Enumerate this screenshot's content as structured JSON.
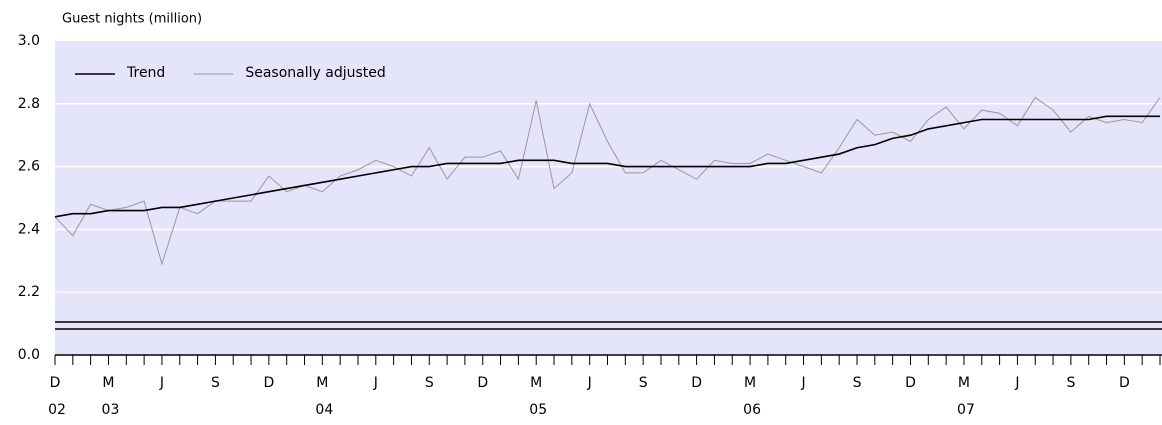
{
  "chart_data": {
    "type": "line",
    "y_label": "Guest nights (million)",
    "categories": [
      "D",
      null,
      null,
      "M",
      null,
      null,
      "J",
      null,
      null,
      "S",
      null,
      null,
      "D",
      null,
      null,
      "M",
      null,
      null,
      "J",
      null,
      null,
      "S",
      null,
      null,
      "D",
      null,
      null,
      "M",
      null,
      null,
      "J",
      null,
      null,
      "S",
      null,
      null,
      "D",
      null,
      null,
      "M",
      null,
      null,
      "J",
      null,
      null,
      "S",
      null,
      null,
      "D",
      null,
      null,
      "M",
      null,
      null,
      "J",
      null,
      null,
      "S",
      null,
      null,
      "D",
      null,
      null
    ],
    "year_labels": [
      "02",
      null,
      null,
      "03",
      null,
      null,
      null,
      null,
      null,
      null,
      null,
      null,
      null,
      null,
      null,
      "04",
      null,
      null,
      null,
      null,
      null,
      null,
      null,
      null,
      null,
      null,
      null,
      "05",
      null,
      null,
      null,
      null,
      null,
      null,
      null,
      null,
      null,
      null,
      null,
      "06",
      null,
      null,
      null,
      null,
      null,
      null,
      null,
      null,
      null,
      null,
      null,
      "07",
      null,
      null,
      null,
      null,
      null,
      null,
      null,
      null,
      null,
      null,
      null
    ],
    "series": [
      {
        "name": "Trend",
        "color": "#000000",
        "width": 1.6,
        "values": [
          2.44,
          2.45,
          2.45,
          2.46,
          2.46,
          2.46,
          2.47,
          2.47,
          2.48,
          2.49,
          2.5,
          2.51,
          2.52,
          2.53,
          2.54,
          2.55,
          2.56,
          2.57,
          2.58,
          2.59,
          2.6,
          2.6,
          2.61,
          2.61,
          2.61,
          2.61,
          2.62,
          2.62,
          2.62,
          2.61,
          2.61,
          2.61,
          2.6,
          2.6,
          2.6,
          2.6,
          2.6,
          2.6,
          2.6,
          2.6,
          2.61,
          2.61,
          2.62,
          2.63,
          2.64,
          2.66,
          2.67,
          2.69,
          2.7,
          2.72,
          2.73,
          2.74,
          2.75,
          2.75,
          2.75,
          2.75,
          2.75,
          2.75,
          2.75,
          2.76,
          2.76,
          2.76,
          2.76
        ]
      },
      {
        "name": "Seasonally adjusted",
        "color": "#999999",
        "width": 1,
        "values": [
          2.44,
          2.38,
          2.48,
          2.46,
          2.47,
          2.49,
          2.29,
          2.47,
          2.45,
          2.49,
          2.49,
          2.49,
          2.57,
          2.52,
          2.54,
          2.52,
          2.57,
          2.59,
          2.62,
          2.6,
          2.57,
          2.66,
          2.56,
          2.63,
          2.63,
          2.65,
          2.56,
          2.81,
          2.53,
          2.58,
          2.8,
          2.68,
          2.58,
          2.58,
          2.62,
          2.59,
          2.56,
          2.62,
          2.61,
          2.61,
          2.64,
          2.62,
          2.6,
          2.58,
          2.66,
          2.75,
          2.7,
          2.71,
          2.68,
          2.75,
          2.79,
          2.72,
          2.78,
          2.77,
          2.73,
          2.82,
          2.78,
          2.71,
          2.76,
          2.74,
          2.75,
          2.74,
          2.82
        ]
      }
    ],
    "ylim": [
      2.0,
      3.0
    ],
    "yticks": [
      0,
      2.2,
      2.4,
      2.6,
      2.8,
      {
        "value": 3.0,
        "label": "3.0"
      }
    ],
    "ytick_labels": [
      "0.0",
      "2.2",
      "2.4",
      "2.6",
      "2.8",
      "3.0"
    ],
    "axis_break": true,
    "grid": true,
    "legend": "top-left",
    "plot_background": "#e4e4fb"
  }
}
